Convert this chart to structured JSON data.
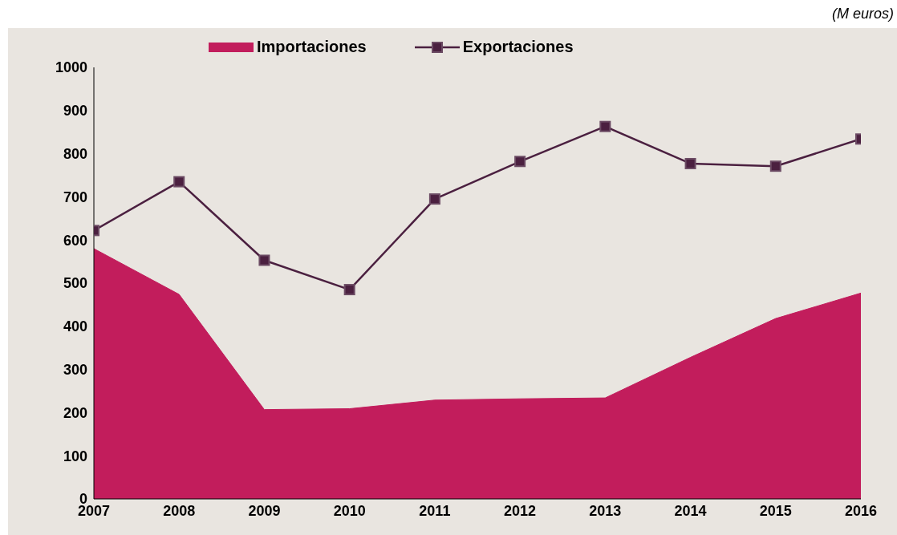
{
  "chart_data": {
    "type": "area",
    "annotations": [
      "(M euros)"
    ],
    "x": [
      2007,
      2008,
      2009,
      2010,
      2011,
      2012,
      2013,
      2014,
      2015,
      2016
    ],
    "series": [
      {
        "name": "Importaciones",
        "color": "#c21d5c",
        "values": [
          580,
          474,
          207,
          209,
          229,
          232,
          234,
          328,
          418,
          477
        ]
      },
      {
        "name": "Exportaciones",
        "type": "line",
        "color": "#4b2040",
        "marker": "square",
        "values": [
          622,
          735,
          553,
          485,
          695,
          782,
          863,
          777,
          771,
          834
        ]
      }
    ],
    "xlim": [
      2007,
      2016
    ],
    "xticks": [
      2007,
      2008,
      2009,
      2010,
      2011,
      2012,
      2013,
      2014,
      2015,
      2016
    ],
    "ylim": [
      0,
      1000
    ],
    "yticks": [
      0,
      100,
      200,
      300,
      400,
      500,
      600,
      700,
      800,
      900,
      1000
    ],
    "grid": false,
    "legend": "top"
  }
}
